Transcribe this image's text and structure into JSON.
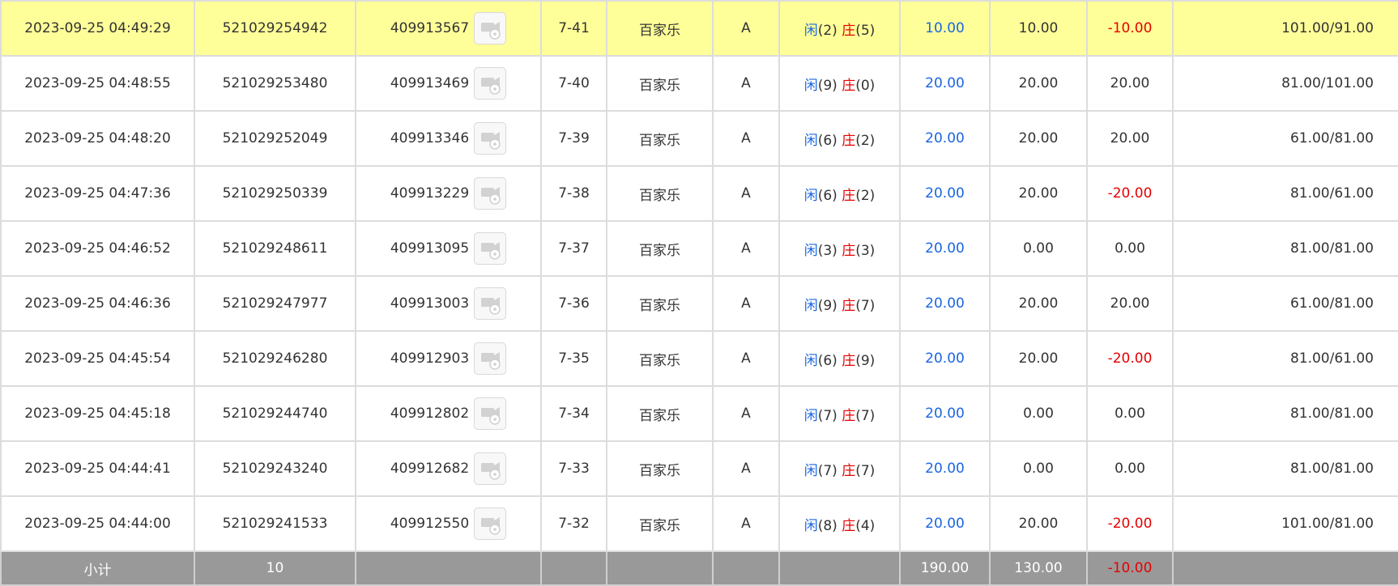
{
  "labels": {
    "player": "闲",
    "banker": "庄"
  },
  "icons": {
    "replay": "video-replay-icon"
  },
  "colors": {
    "highlight_row": "#ffff99",
    "subtotal_row": "#999999",
    "blue": "#1a66e0",
    "red": "#e60000"
  },
  "rows": [
    {
      "time": "2023-09-25 04:49:29",
      "bet_id": "521029254942",
      "game_id": "409913567",
      "table_round": "7-41",
      "game": "百家乐",
      "table": "A",
      "player_points": "2",
      "banker_points": "5",
      "bet_amount": "10.00",
      "valid_bet": "10.00",
      "win_loss": "-10.00",
      "balance": "101.00/91.00"
    },
    {
      "time": "2023-09-25 04:48:55",
      "bet_id": "521029253480",
      "game_id": "409913469",
      "table_round": "7-40",
      "game": "百家乐",
      "table": "A",
      "player_points": "9",
      "banker_points": "0",
      "bet_amount": "20.00",
      "valid_bet": "20.00",
      "win_loss": "20.00",
      "balance": "81.00/101.00"
    },
    {
      "time": "2023-09-25 04:48:20",
      "bet_id": "521029252049",
      "game_id": "409913346",
      "table_round": "7-39",
      "game": "百家乐",
      "table": "A",
      "player_points": "6",
      "banker_points": "2",
      "bet_amount": "20.00",
      "valid_bet": "20.00",
      "win_loss": "20.00",
      "balance": "61.00/81.00"
    },
    {
      "time": "2023-09-25 04:47:36",
      "bet_id": "521029250339",
      "game_id": "409913229",
      "table_round": "7-38",
      "game": "百家乐",
      "table": "A",
      "player_points": "6",
      "banker_points": "2",
      "bet_amount": "20.00",
      "valid_bet": "20.00",
      "win_loss": "-20.00",
      "balance": "81.00/61.00"
    },
    {
      "time": "2023-09-25 04:46:52",
      "bet_id": "521029248611",
      "game_id": "409913095",
      "table_round": "7-37",
      "game": "百家乐",
      "table": "A",
      "player_points": "3",
      "banker_points": "3",
      "bet_amount": "20.00",
      "valid_bet": "0.00",
      "win_loss": "0.00",
      "balance": "81.00/81.00"
    },
    {
      "time": "2023-09-25 04:46:36",
      "bet_id": "521029247977",
      "game_id": "409913003",
      "table_round": "7-36",
      "game": "百家乐",
      "table": "A",
      "player_points": "9",
      "banker_points": "7",
      "bet_amount": "20.00",
      "valid_bet": "20.00",
      "win_loss": "20.00",
      "balance": "61.00/81.00"
    },
    {
      "time": "2023-09-25 04:45:54",
      "bet_id": "521029246280",
      "game_id": "409912903",
      "table_round": "7-35",
      "game": "百家乐",
      "table": "A",
      "player_points": "6",
      "banker_points": "9",
      "bet_amount": "20.00",
      "valid_bet": "20.00",
      "win_loss": "-20.00",
      "balance": "81.00/61.00"
    },
    {
      "time": "2023-09-25 04:45:18",
      "bet_id": "521029244740",
      "game_id": "409912802",
      "table_round": "7-34",
      "game": "百家乐",
      "table": "A",
      "player_points": "7",
      "banker_points": "7",
      "bet_amount": "20.00",
      "valid_bet": "0.00",
      "win_loss": "0.00",
      "balance": "81.00/81.00"
    },
    {
      "time": "2023-09-25 04:44:41",
      "bet_id": "521029243240",
      "game_id": "409912682",
      "table_round": "7-33",
      "game": "百家乐",
      "table": "A",
      "player_points": "7",
      "banker_points": "7",
      "bet_amount": "20.00",
      "valid_bet": "0.00",
      "win_loss": "0.00",
      "balance": "81.00/81.00"
    },
    {
      "time": "2023-09-25 04:44:00",
      "bet_id": "521029241533",
      "game_id": "409912550",
      "table_round": "7-32",
      "game": "百家乐",
      "table": "A",
      "player_points": "8",
      "banker_points": "4",
      "bet_amount": "20.00",
      "valid_bet": "20.00",
      "win_loss": "-20.00",
      "balance": "101.00/81.00"
    }
  ],
  "subtotal": {
    "label": "小计",
    "count": "10",
    "bet_amount": "190.00",
    "valid_bet": "130.00",
    "win_loss": "-10.00"
  }
}
